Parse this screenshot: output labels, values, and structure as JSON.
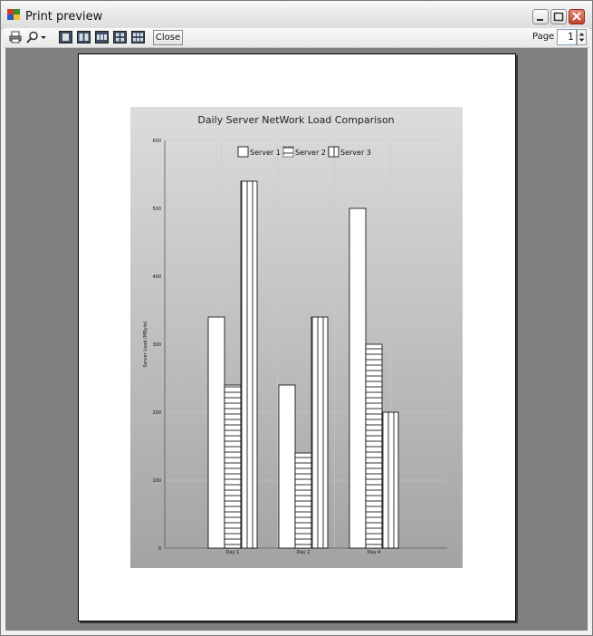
{
  "window": {
    "title": "Print preview"
  },
  "toolbar": {
    "icons": [
      "printer-icon",
      "zoom-icon",
      "dropdown-arrow-icon",
      "one-page-icon",
      "two-pages-icon",
      "three-pages-icon",
      "four-pages-icon",
      "six-pages-icon"
    ],
    "close_label": "Close",
    "page_label": "Page",
    "page_value": "1"
  },
  "chart_data": {
    "type": "bar",
    "title": "Daily Server NetWork Load Comparison",
    "xlabel": "",
    "ylabel": "Server Load (MByte)",
    "ylim": [
      0,
      600
    ],
    "yticks": [
      "0",
      "100",
      "200",
      "300",
      "400",
      "500",
      "600"
    ],
    "categories": [
      "Day 1",
      "Day 2",
      "Day 4"
    ],
    "series": [
      {
        "name": "Server 1",
        "values": [
          340,
          240,
          500
        ],
        "pattern": "empty"
      },
      {
        "name": "Server 2",
        "values": [
          240,
          140,
          300
        ],
        "pattern": "horizontal"
      },
      {
        "name": "Server 3",
        "values": [
          540,
          340,
          200
        ],
        "pattern": "vertical"
      }
    ],
    "legend": "top",
    "grid": true,
    "colors": {
      "bar_fill": "#ffffff",
      "bar_stroke": "#000000",
      "background_top": "#dcdcdc",
      "background_bottom": "#a3a3a3"
    }
  }
}
